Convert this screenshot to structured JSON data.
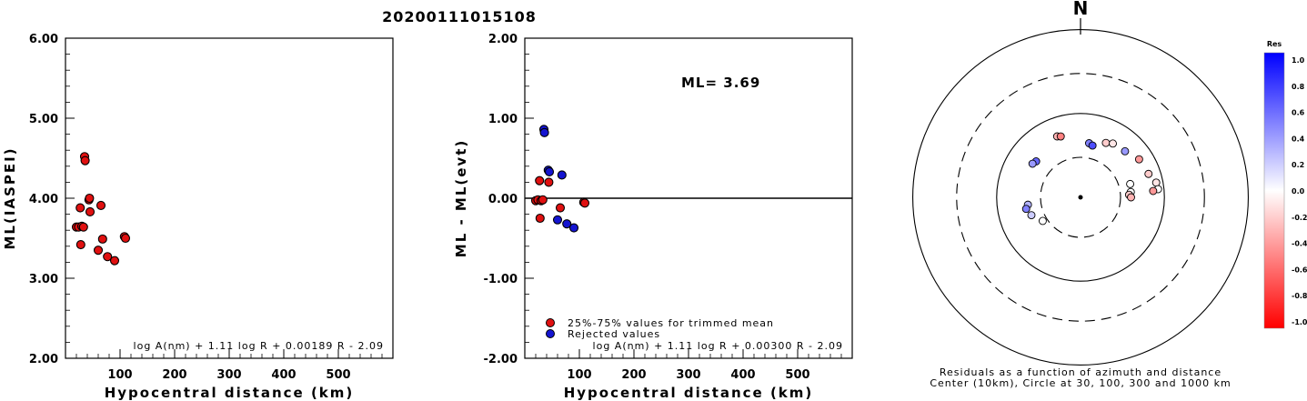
{
  "title": "20200111015108",
  "colors": {
    "used": "#e01010",
    "rejected": "#1414d0",
    "outline": "#000000"
  },
  "chart_data": [
    {
      "type": "scatter",
      "xlabel": "Hypocentral distance (km)",
      "ylabel": "ML(IASPEI)",
      "xlim": [
        0,
        600
      ],
      "ylim": [
        2.0,
        6.0
      ],
      "xticks": [
        "100",
        "200",
        "300",
        "400",
        "500"
      ],
      "yticks": [
        "2.00",
        "3.00",
        "4.00",
        "5.00",
        "6.00"
      ],
      "formula": "log A(nm) + 1.11 log R + 0.00189 R - 2.09",
      "series": [
        {
          "points": [
            [
              20,
              3.64
            ],
            [
              24,
              3.64
            ],
            [
              27,
              3.88
            ],
            [
              28,
              3.42
            ],
            [
              30,
              3.65
            ],
            [
              33,
              3.64
            ],
            [
              35,
              4.52
            ],
            [
              36,
              4.47
            ],
            [
              43,
              3.98
            ],
            [
              44,
              4.0
            ],
            [
              45,
              3.83
            ],
            [
              60,
              3.35
            ],
            [
              65,
              3.91
            ],
            [
              68,
              3.49
            ],
            [
              77,
              3.27
            ],
            [
              90,
              3.22
            ],
            [
              108,
              3.52
            ],
            [
              110,
              3.5
            ]
          ]
        }
      ]
    },
    {
      "type": "scatter",
      "xlabel": "Hypocentral distance (km)",
      "ylabel": "ML - ML(evt)",
      "xlim": [
        0,
        600
      ],
      "ylim": [
        -2.0,
        2.0
      ],
      "xticks": [
        "100",
        "200",
        "300",
        "400",
        "500"
      ],
      "yticks": [
        "-2.00",
        "-1.00",
        "0.00",
        "1.00",
        "2.00"
      ],
      "zero_line": true,
      "annotation": "ML= 3.69",
      "formula": "log A(nm) + 1.11 log R + 0.00300 R - 2.09",
      "legend": [
        {
          "label": "25%-75% values for trimmed mean",
          "color": "#e01010"
        },
        {
          "label": "Rejected values",
          "color": "#1414d0"
        }
      ],
      "series": [
        {
          "name": "25%-75% values for trimmed mean",
          "color": "#e01010",
          "points": [
            [
              20,
              -0.03
            ],
            [
              24,
              -0.02
            ],
            [
              27,
              0.22
            ],
            [
              28,
              -0.25
            ],
            [
              30,
              -0.03
            ],
            [
              33,
              -0.02
            ],
            [
              44,
              0.2
            ],
            [
              65,
              -0.12
            ],
            [
              108,
              -0.05
            ],
            [
              110,
              -0.06
            ]
          ]
        },
        {
          "name": "Rejected values",
          "color": "#1414d0",
          "points": [
            [
              35,
              0.86
            ],
            [
              36,
              0.82
            ],
            [
              43,
              0.35
            ],
            [
              45,
              0.33
            ],
            [
              60,
              -0.27
            ],
            [
              68,
              0.29
            ],
            [
              77,
              -0.32
            ],
            [
              90,
              -0.37
            ]
          ]
        }
      ]
    },
    {
      "type": "polar-scatter",
      "north_label": "N",
      "caption": [
        "Residuals as a function of azimuth and distance",
        "Center (10km), Circle at 30, 100, 300 and 1000 km"
      ],
      "rings_km": [
        30,
        100,
        300,
        1000
      ],
      "colorbar": {
        "title": "Res",
        "ticks": [
          "1.0",
          "0.8",
          "0.6",
          "0.4",
          "0.2",
          "0.0",
          "-0.2",
          "-0.4",
          "-0.6",
          "-0.8",
          "-1.0"
        ],
        "max_color": "#0000ff",
        "mid_color": "#ffffff",
        "min_color": "#ff0000"
      },
      "stations": [
        {
          "azimuth": 339,
          "distance_km": 60,
          "residual": -0.3
        },
        {
          "azimuth": 342,
          "distance_km": 58,
          "residual": -0.5
        },
        {
          "azimuth": 309,
          "distance_km": 48,
          "residual": 0.6
        },
        {
          "azimuth": 305,
          "distance_km": 50,
          "residual": 0.4
        },
        {
          "azimuth": 262,
          "distance_km": 43,
          "residual": 0.3
        },
        {
          "azimuth": 258,
          "distance_km": 46,
          "residual": 0.5
        },
        {
          "azimuth": 250,
          "distance_km": 42,
          "residual": 0.2
        },
        {
          "azimuth": 238,
          "distance_km": 34,
          "residual": 0.0
        },
        {
          "azimuth": 9,
          "distance_km": 45,
          "residual": 0.5
        },
        {
          "azimuth": 13,
          "distance_km": 43,
          "residual": 0.7
        },
        {
          "azimuth": 25,
          "distance_km": 52,
          "residual": -0.2
        },
        {
          "azimuth": 31,
          "distance_km": 56,
          "residual": -0.1
        },
        {
          "azimuth": 44,
          "distance_km": 58,
          "residual": 0.4
        },
        {
          "azimuth": 57,
          "distance_km": 68,
          "residual": -0.4
        },
        {
          "azimuth": 71,
          "distance_km": 72,
          "residual": -0.2
        },
        {
          "azimuth": 79,
          "distance_km": 83,
          "residual": -0.1
        },
        {
          "azimuth": 84,
          "distance_km": 85,
          "residual": 0.0
        },
        {
          "azimuth": 85,
          "distance_km": 74,
          "residual": -0.4
        },
        {
          "azimuth": 75,
          "distance_km": 41,
          "residual": 0.0
        },
        {
          "azimuth": 84,
          "distance_km": 40,
          "residual": 0.0
        },
        {
          "azimuth": 87,
          "distance_km": 38,
          "residual": -0.2
        },
        {
          "azimuth": 90,
          "distance_km": 40,
          "residual": -0.3
        }
      ]
    }
  ]
}
